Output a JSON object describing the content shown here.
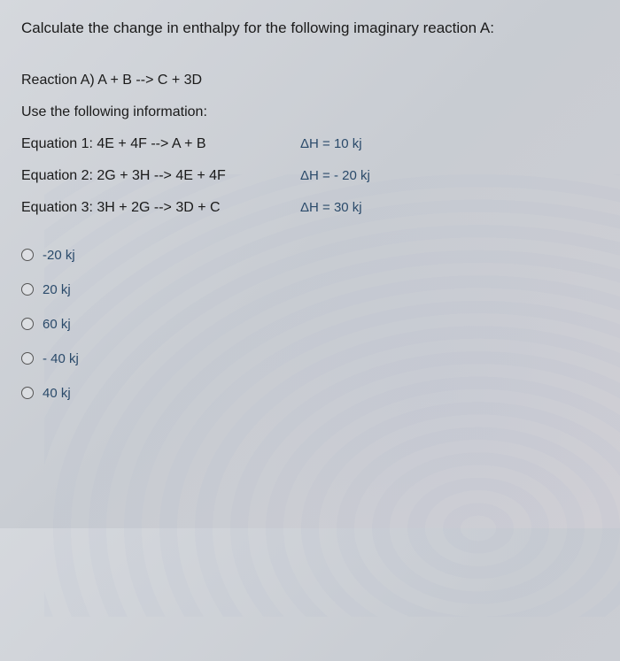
{
  "question": {
    "title": "Calculate the change in enthalpy for the following imaginary reaction A:",
    "reaction": "Reaction A)   A + B --> C + 3D",
    "info_text": "Use the following information:",
    "equations": [
      {
        "label": "Equation 1:  4E + 4F  --> A + B",
        "delta_h": "ΔH = 10 kj"
      },
      {
        "label": "Equation 2:  2G + 3H  --> 4E + 4F",
        "delta_h": "ΔH = - 20 kj"
      },
      {
        "label": "Equation 3:  3H + 2G  --> 3D + C",
        "delta_h": "ΔH = 30 kj"
      }
    ],
    "options": [
      {
        "label": "-20 kj"
      },
      {
        "label": "20 kj"
      },
      {
        "label": "60 kj"
      },
      {
        "label": "- 40 kj"
      },
      {
        "label": "40 kj"
      }
    ]
  },
  "colors": {
    "text_primary": "#1a1a1a",
    "text_secondary": "#2a4a6a",
    "background": "#d5d8dd",
    "radio_border": "#555"
  }
}
